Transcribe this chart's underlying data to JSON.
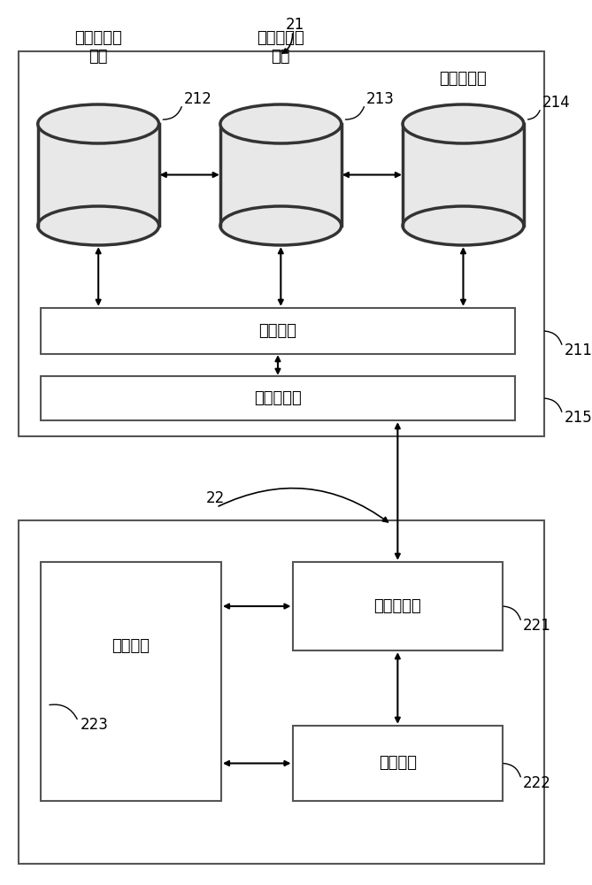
{
  "bg_color": "#ffffff",
  "outer_box_fill": "#ffffff",
  "outer_box_edge": "#555555",
  "inner_box_fill": "#ffffff",
  "inner_box_edge": "#555555",
  "cylinder_fill": "#e8e8e8",
  "cylinder_edge": "#333333",
  "cylinder_lw": 2.5,
  "label_21": "21",
  "label_22": "22",
  "label_211": "211",
  "label_212": "212",
  "label_213": "213",
  "label_214": "214",
  "label_215": "215",
  "label_221": "221",
  "label_222": "222",
  "label_223": "223",
  "text_db1": "用户标识数\n据库",
  "text_db2": "操作记录数\n据库",
  "text_db3": "文件数据库",
  "text_recommend": "推荐模块",
  "text_msg_hub1": "消息收发器",
  "text_msg_hub2": "消息收发器",
  "text_display": "显示模块",
  "text_input": "输入模块",
  "font_size": 13,
  "font_size_label": 12,
  "arrow_lw": 1.5,
  "arrow_mutation": 10
}
